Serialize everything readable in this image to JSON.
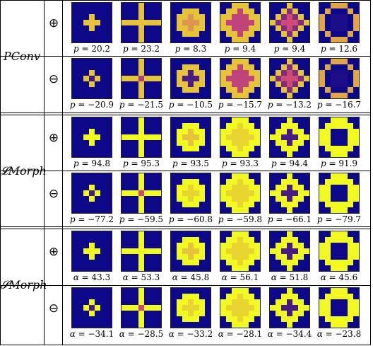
{
  "groups": [
    {
      "method": "PConv",
      "param": "p",
      "rows": [
        {
          "sign": "⊕",
          "sign_name": "plus",
          "values": [
            "20.2",
            "23.2",
            "8.3",
            "9.4",
            "9.4",
            "12.6"
          ]
        },
        {
          "sign": "⊖",
          "sign_name": "minus",
          "values": [
            "−20.9",
            "−21.5",
            "−10.5",
            "−15.7",
            "−13.2",
            "−16.7"
          ]
        }
      ]
    },
    {
      "method": "𝓛Morph",
      "param": "p",
      "rows": [
        {
          "sign": "⊕",
          "sign_name": "plus",
          "values": [
            "94.8",
            "95.3",
            "93.5",
            "93.3",
            "94.4",
            "91.9"
          ]
        },
        {
          "sign": "⊖",
          "sign_name": "minus",
          "values": [
            "−77.2",
            "−59.5",
            "−60.8",
            "−59.8",
            "−66.1",
            "−79.7"
          ]
        }
      ]
    },
    {
      "method": "𝓢Morph",
      "param": "α",
      "rows": [
        {
          "sign": "⊕",
          "sign_name": "plus",
          "values": [
            "43.3",
            "53.3",
            "45.8",
            "56.1",
            "51.8",
            "45.6"
          ]
        },
        {
          "sign": "⊖",
          "sign_name": "minus",
          "values": [
            "−34.1",
            "−28.5",
            "−33.2",
            "−28.1",
            "−34.4",
            "−23.8"
          ]
        }
      ]
    }
  ],
  "colors": {
    "background": "#0d0887",
    "mid": "#cc4778",
    "high": "#f0f921"
  },
  "kernel_shapes": [
    "small-cross",
    "large-cross",
    "disk-small",
    "disk-large",
    "diamond",
    "ring"
  ]
}
